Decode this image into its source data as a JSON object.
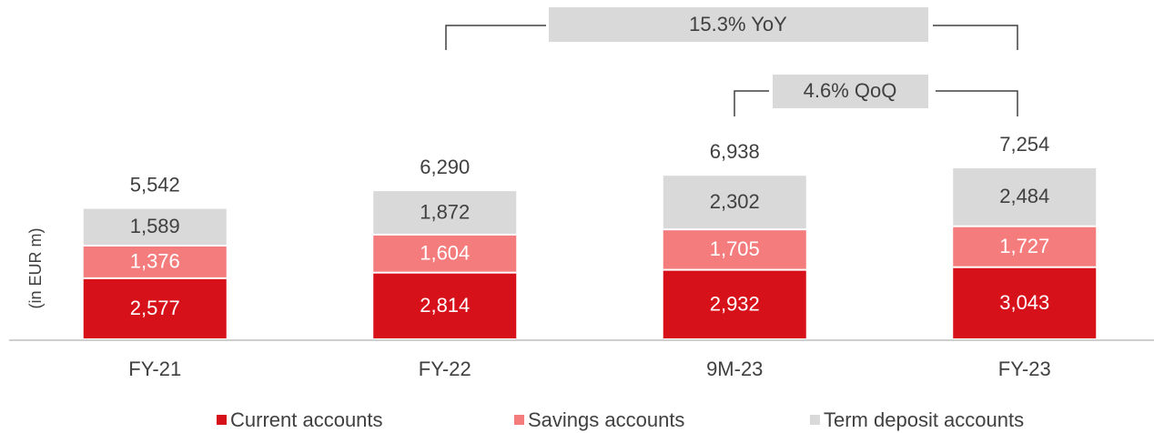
{
  "chart_data": {
    "type": "stacked_bar",
    "y_axis_label": "(in EUR m)",
    "categories": [
      "FY-21",
      "FY-22",
      "9M-23",
      "FY-23"
    ],
    "series": [
      {
        "name": "Current accounts",
        "color": "#d7111a",
        "label_color": "#ffffff",
        "values": [
          2577,
          2814,
          2932,
          3043
        ],
        "value_labels": [
          "2,577",
          "2,814",
          "2,932",
          "3,043"
        ]
      },
      {
        "name": "Savings accounts",
        "color": "#f47c7c",
        "label_color": "#ffffff",
        "values": [
          1376,
          1604,
          1705,
          1727
        ],
        "value_labels": [
          "1,376",
          "1,604",
          "1,705",
          "1,727"
        ]
      },
      {
        "name": "Term deposit accounts",
        "color": "#d9d9d9",
        "label_color": "#404040",
        "values": [
          1589,
          1872,
          2302,
          2484
        ],
        "value_labels": [
          "1,589",
          "1,872",
          "2,302",
          "2,484"
        ]
      }
    ],
    "totals": {
      "values": [
        5542,
        6290,
        6938,
        7254
      ],
      "value_labels": [
        "5,542",
        "6,290",
        "6,938",
        "7,254"
      ]
    },
    "annotations": [
      "15.3% YoY",
      "4.6% QoQ"
    ]
  }
}
